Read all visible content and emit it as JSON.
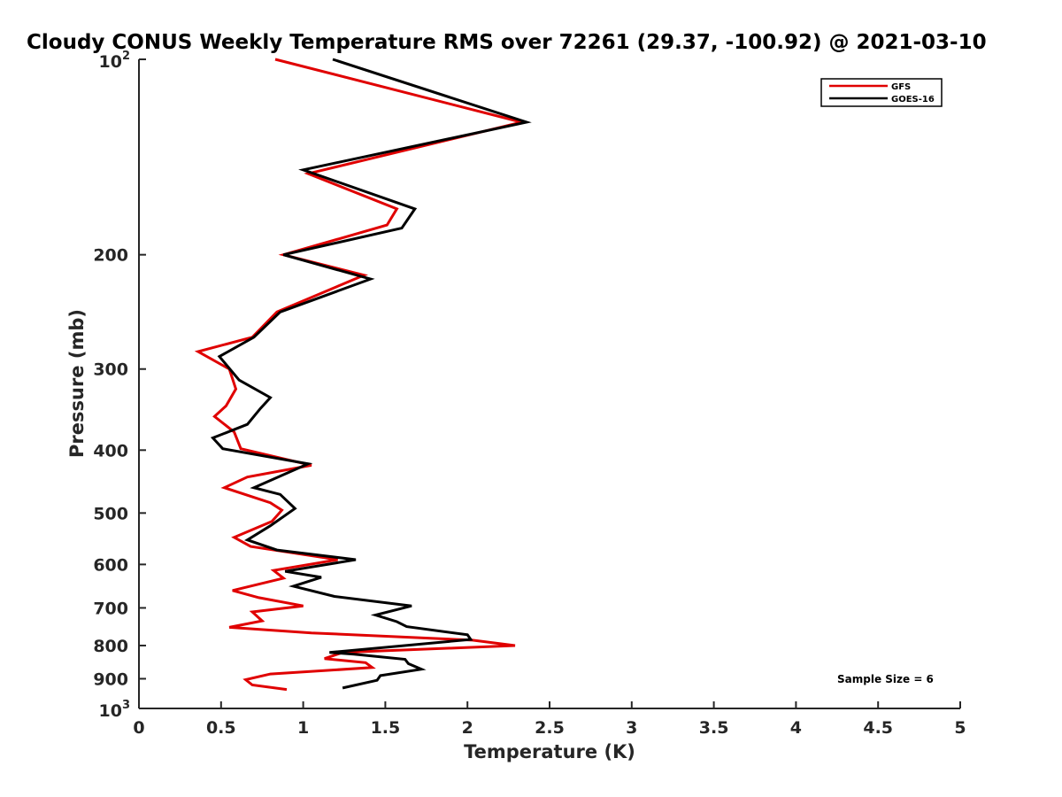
{
  "chart_data": {
    "type": "line",
    "title": "Cloudy CONUS Weekly Temperature RMS over 72261 (29.37, -100.92) @ 2021-03-10",
    "xlabel": "Temperature (K)",
    "ylabel": "Pressure (mb)",
    "xlim": [
      0,
      5
    ],
    "ylim": [
      100,
      1000
    ],
    "y_scale": "log",
    "y_reversed": true,
    "x_ticks": [
      "0",
      "0.5",
      "1",
      "1.5",
      "2",
      "2.5",
      "3",
      "3.5",
      "4",
      "4.5",
      "5"
    ],
    "y_ticks": [
      {
        "value": 100,
        "base": "10",
        "exp": "2"
      },
      {
        "value": 200,
        "label": "200"
      },
      {
        "value": 300,
        "label": "300"
      },
      {
        "value": 400,
        "label": "400"
      },
      {
        "value": 500,
        "label": "500"
      },
      {
        "value": 600,
        "label": "600"
      },
      {
        "value": 700,
        "label": "700"
      },
      {
        "value": 800,
        "label": "800"
      },
      {
        "value": 900,
        "label": "900"
      },
      {
        "value": 1000,
        "base": "10",
        "exp": "3"
      }
    ],
    "grid": false,
    "legend_position": "top-right",
    "series": [
      {
        "name": "GFS",
        "color": "#e00000",
        "points": [
          [
            0.83,
            100
          ],
          [
            2.33,
            125
          ],
          [
            1.03,
            150
          ],
          [
            1.57,
            170
          ],
          [
            1.51,
            180
          ],
          [
            0.88,
            200
          ],
          [
            1.37,
            215
          ],
          [
            0.84,
            245
          ],
          [
            0.69,
            268
          ],
          [
            0.36,
            282
          ],
          [
            0.55,
            300
          ],
          [
            0.59,
            322
          ],
          [
            0.53,
            342
          ],
          [
            0.46,
            355
          ],
          [
            0.58,
            375
          ],
          [
            0.62,
            398
          ],
          [
            1.05,
            422
          ],
          [
            0.66,
            440
          ],
          [
            0.52,
            457
          ],
          [
            0.8,
            482
          ],
          [
            0.87,
            495
          ],
          [
            0.81,
            515
          ],
          [
            0.58,
            545
          ],
          [
            0.68,
            563
          ],
          [
            1.21,
            590
          ],
          [
            0.82,
            613
          ],
          [
            0.88,
            630
          ],
          [
            0.57,
            658
          ],
          [
            0.73,
            675
          ],
          [
            1.0,
            695
          ],
          [
            0.69,
            710
          ],
          [
            0.75,
            733
          ],
          [
            0.55,
            750
          ],
          [
            1.05,
            765
          ],
          [
            2.03,
            785
          ],
          [
            2.29,
            800
          ],
          [
            1.24,
            820
          ],
          [
            1.13,
            838
          ],
          [
            1.38,
            850
          ],
          [
            1.42,
            865
          ],
          [
            0.8,
            885
          ],
          [
            0.65,
            903
          ],
          [
            0.69,
            920
          ],
          [
            0.9,
            935
          ]
        ]
      },
      {
        "name": "GOES-16",
        "color": "#000000",
        "points": [
          [
            1.18,
            100
          ],
          [
            2.36,
            125
          ],
          [
            1.0,
            148
          ],
          [
            1.68,
            170
          ],
          [
            1.6,
            182
          ],
          [
            0.88,
            200
          ],
          [
            1.41,
            218
          ],
          [
            0.86,
            245
          ],
          [
            0.7,
            268
          ],
          [
            0.49,
            287
          ],
          [
            0.61,
            312
          ],
          [
            0.8,
            332
          ],
          [
            0.74,
            345
          ],
          [
            0.66,
            365
          ],
          [
            0.45,
            383
          ],
          [
            0.51,
            398
          ],
          [
            1.03,
            420
          ],
          [
            0.7,
            457
          ],
          [
            0.86,
            468
          ],
          [
            0.95,
            492
          ],
          [
            0.8,
            523
          ],
          [
            0.66,
            550
          ],
          [
            0.84,
            570
          ],
          [
            1.32,
            590
          ],
          [
            0.89,
            615
          ],
          [
            1.11,
            628
          ],
          [
            0.94,
            648
          ],
          [
            1.19,
            672
          ],
          [
            1.66,
            695
          ],
          [
            1.44,
            718
          ],
          [
            1.57,
            735
          ],
          [
            1.63,
            748
          ],
          [
            2.0,
            770
          ],
          [
            2.02,
            783
          ],
          [
            1.16,
            820
          ],
          [
            1.31,
            825
          ],
          [
            1.62,
            840
          ],
          [
            1.64,
            853
          ],
          [
            1.72,
            870
          ],
          [
            1.47,
            890
          ],
          [
            1.45,
            905
          ],
          [
            1.24,
            930
          ]
        ]
      }
    ],
    "annotations": [
      "Sample Size = 6"
    ]
  }
}
